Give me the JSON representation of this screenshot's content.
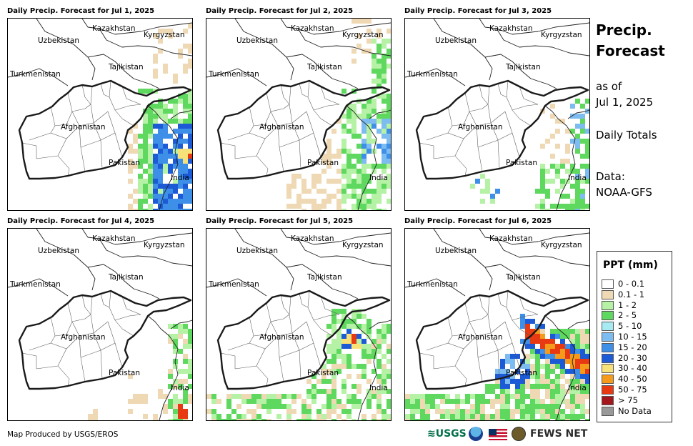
{
  "panels": [
    {
      "title": "Daily Precip. Forecast for Jul 1, 2025",
      "scenario": "jul1"
    },
    {
      "title": "Daily Precip. Forecast for Jul 2, 2025",
      "scenario": "jul2"
    },
    {
      "title": "Daily Precip. Forecast for Jul 3, 2025",
      "scenario": "jul3"
    },
    {
      "title": "Daily Precip. Forecast for Jul 4, 2025",
      "scenario": "jul4"
    },
    {
      "title": "Daily Precip. Forecast for Jul 5, 2025",
      "scenario": "jul5"
    },
    {
      "title": "Daily Precip. Forecast for Jul 6, 2025",
      "scenario": "jul6"
    }
  ],
  "map_labels": {
    "kazakhstan": "Kazakhstan",
    "kyrgyzstan": "Kyrgyzstan",
    "uzbekistan": "Uzbekistan",
    "tajikistan": "Tajikistan",
    "turkmenistan": "Turkmenistan",
    "afghanistan": "Afghanistan",
    "pakistan": "Pakistan",
    "india": "India"
  },
  "side": {
    "title_line1": "Precip.",
    "title_line2": "Forecast",
    "asof_line1": "as of",
    "asof_line2": "Jul 1, 2025",
    "totals": "Daily Totals",
    "data_line1": "Data:",
    "data_line2": "NOAA-GFS"
  },
  "legend": {
    "title": "PPT (mm)",
    "items": [
      {
        "label": "0 - 0.1",
        "color": "#ffffff"
      },
      {
        "label": "0.1 - 1",
        "color": "#efd9b4"
      },
      {
        "label": "1 - 2",
        "color": "#b5f2a6"
      },
      {
        "label": "2 - 5",
        "color": "#5ed85e"
      },
      {
        "label": "5 - 10",
        "color": "#a8eaf2"
      },
      {
        "label": "10 - 15",
        "color": "#7dbcf0"
      },
      {
        "label": "15 - 20",
        "color": "#3e8fe8"
      },
      {
        "label": "20 - 30",
        "color": "#1c5ad6"
      },
      {
        "label": "30 - 40",
        "color": "#f7e27a"
      },
      {
        "label": "40 - 50",
        "color": "#f59a1a"
      },
      {
        "label": "50 - 75",
        "color": "#e83a12"
      },
      {
        "label": "> 75",
        "color": "#a3161b"
      },
      {
        "label": "No Data",
        "color": "#999999"
      }
    ]
  },
  "footer": {
    "credit": "Map Produced by USGS/EROS",
    "logo_usgs": "≋USGS",
    "logo_fews": "FEWS NET"
  }
}
